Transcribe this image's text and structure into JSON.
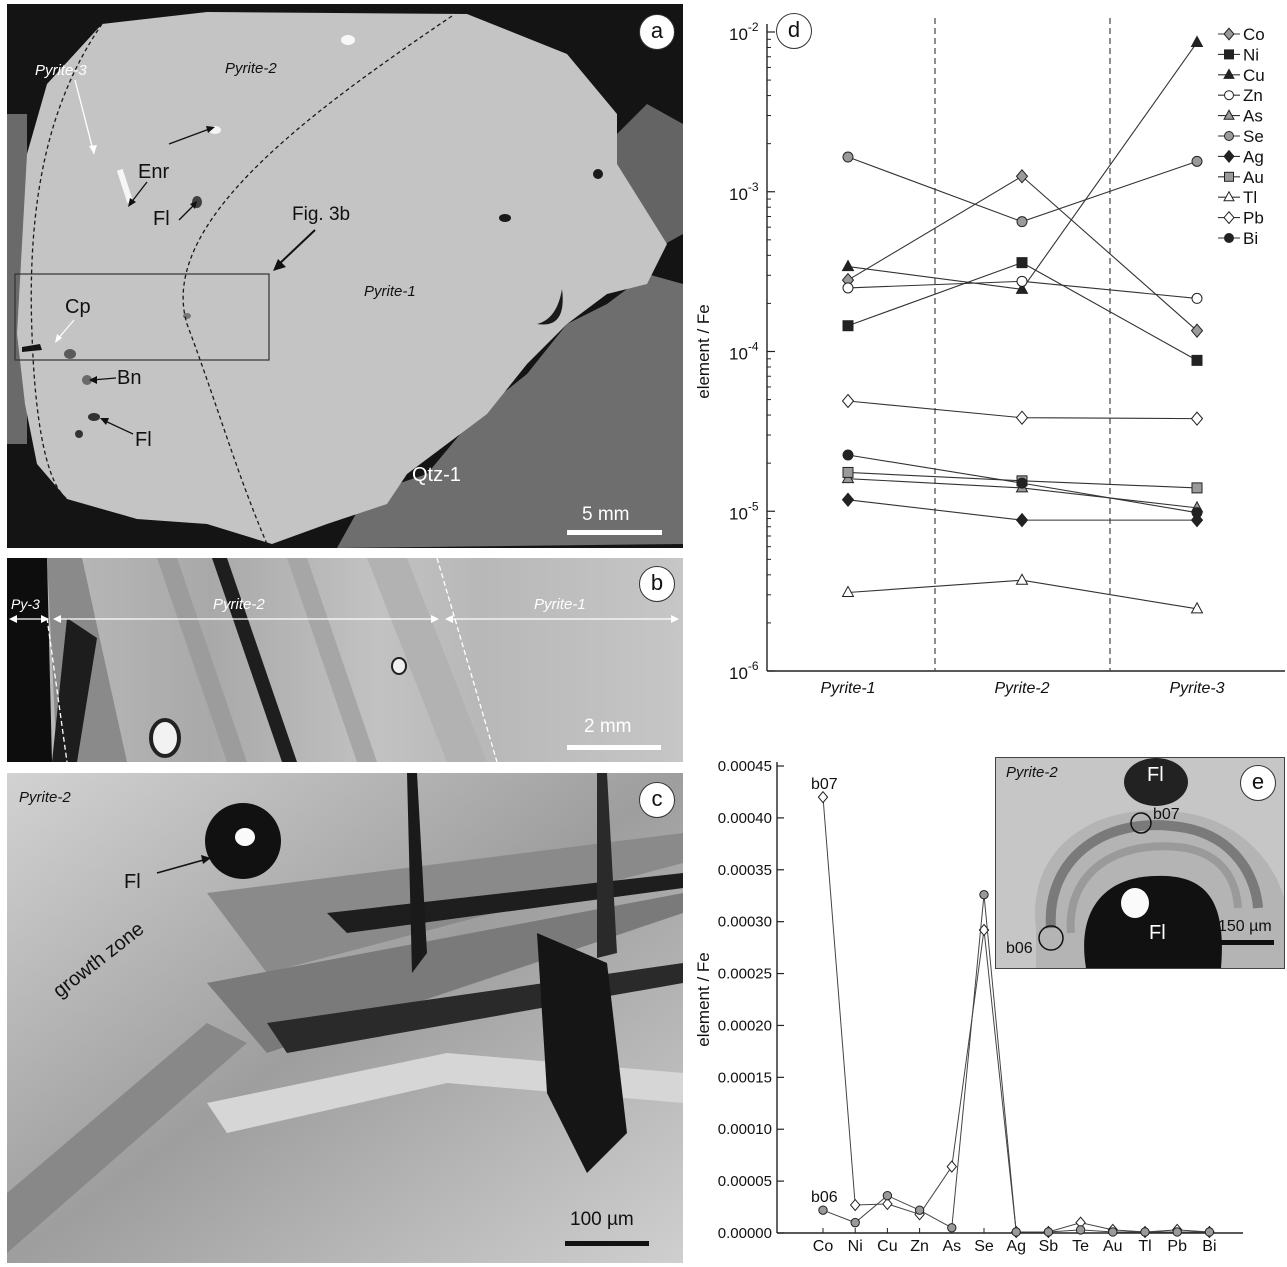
{
  "panel_a": {
    "letter": "a",
    "labels": {
      "pyrite3": "Pyrite-3",
      "pyrite2": "Pyrite-2",
      "pyrite1": "Pyrite-1",
      "enr": "Enr",
      "fl_upper": "Fl",
      "fl_lower": "Fl",
      "fig3b": "Fig. 3b",
      "cp": "Cp",
      "bn": "Bn",
      "qtz1": "Qtz-1"
    },
    "scale": "5 mm"
  },
  "panel_b": {
    "letter": "b",
    "labels": {
      "py3": "Py-3",
      "pyrite2": "Pyrite-2",
      "pyrite1": "Pyrite-1"
    },
    "scale": "2 mm"
  },
  "panel_c": {
    "letter": "c",
    "labels": {
      "pyrite2": "Pyrite-2",
      "fl": "Fl",
      "growth": "growth zone"
    },
    "scale": "100 µm"
  },
  "panel_e": {
    "letter": "e",
    "labels": {
      "pyrite2": "Pyrite-2",
      "fl_top": "Fl",
      "fl_center": "Fl",
      "b07": "b07",
      "b06": "b06"
    },
    "scale": "150 µm"
  },
  "chart_data": [
    {
      "panel": "d",
      "type": "line",
      "ylabel": "element / Fe",
      "yscale": "log",
      "ylim": [
        1e-06,
        0.01
      ],
      "yticks": [
        {
          "v": 1e-06,
          "base": "10",
          "exp": "-6"
        },
        {
          "v": 1e-05,
          "base": "10",
          "exp": "-5"
        },
        {
          "v": 0.0001,
          "base": "10",
          "exp": "-4"
        },
        {
          "v": 0.001,
          "base": "10",
          "exp": "-3"
        },
        {
          "v": 0.01,
          "base": "10",
          "exp": "-2"
        }
      ],
      "categories": [
        "Pyrite-1",
        "Pyrite-2",
        "Pyrite-3"
      ],
      "legend": "right",
      "series": [
        {
          "name": "Co",
          "marker": "diamond",
          "fill": "#9a9a9a",
          "values": [
            0.00028,
            0.00125,
            0.000135
          ]
        },
        {
          "name": "Ni",
          "marker": "square",
          "fill": "#222222",
          "values": [
            0.000145,
            0.00036,
            8.8e-05
          ]
        },
        {
          "name": "Cu",
          "marker": "triangle",
          "fill": "#222222",
          "values": [
            0.00034,
            0.000245,
            0.0086
          ]
        },
        {
          "name": "Zn",
          "marker": "circle",
          "fill": "#ffffff",
          "values": [
            0.00025,
            0.000275,
            0.000215
          ]
        },
        {
          "name": "As",
          "marker": "triangle",
          "fill": "#9a9a9a",
          "values": [
            1.6e-05,
            1.4e-05,
            1.05e-05
          ]
        },
        {
          "name": "Se",
          "marker": "circle",
          "fill": "#9a9a9a",
          "values": [
            0.00165,
            0.00065,
            0.00155
          ]
        },
        {
          "name": "Ag",
          "marker": "diamond",
          "fill": "#222222",
          "values": [
            1.18e-05,
            8.8e-06,
            8.8e-06
          ]
        },
        {
          "name": "Au",
          "marker": "square",
          "fill": "#9a9a9a",
          "values": [
            1.75e-05,
            1.55e-05,
            1.4e-05
          ]
        },
        {
          "name": "Tl",
          "marker": "triangle",
          "fill": "#ffffff",
          "values": [
            3.1e-06,
            3.7e-06,
            2.45e-06
          ]
        },
        {
          "name": "Pb",
          "marker": "diamond",
          "fill": "#ffffff",
          "values": [
            4.9e-05,
            3.85e-05,
            3.8e-05
          ]
        },
        {
          "name": "Bi",
          "marker": "circle",
          "fill": "#222222",
          "values": [
            2.25e-05,
            1.5e-05,
            9.8e-06
          ]
        }
      ]
    },
    {
      "panel": "e",
      "type": "line",
      "ylabel": "element / Fe",
      "ylim": [
        0,
        0.00045
      ],
      "yticks": [
        "0.00000",
        "0.00005",
        "0.00010",
        "0.00015",
        "0.00020",
        "0.00025",
        "0.00030",
        "0.00035",
        "0.00040",
        "0.00045"
      ],
      "categories": [
        "Co",
        "Ni",
        "Cu",
        "Zn",
        "As",
        "Se",
        "Ag",
        "Sb",
        "Te",
        "Au",
        "Tl",
        "Pb",
        "Bi"
      ],
      "series": [
        {
          "name": "b07",
          "marker": "diamond",
          "fill": "#ffffff",
          "values": [
            0.00042,
            2.7e-05,
            2.8e-05,
            1.8e-05,
            6.4e-05,
            0.000292,
            1e-06,
            1e-06,
            1e-05,
            3e-06,
            1e-06,
            3e-06,
            1e-06
          ]
        },
        {
          "name": "b06",
          "marker": "circle",
          "fill": "#9a9a9a",
          "values": [
            2.2e-05,
            1e-05,
            3.6e-05,
            2.2e-05,
            5e-06,
            0.000326,
            1e-06,
            1e-06,
            3e-06,
            1e-06,
            1e-06,
            1e-06,
            1e-06
          ]
        }
      ]
    }
  ]
}
